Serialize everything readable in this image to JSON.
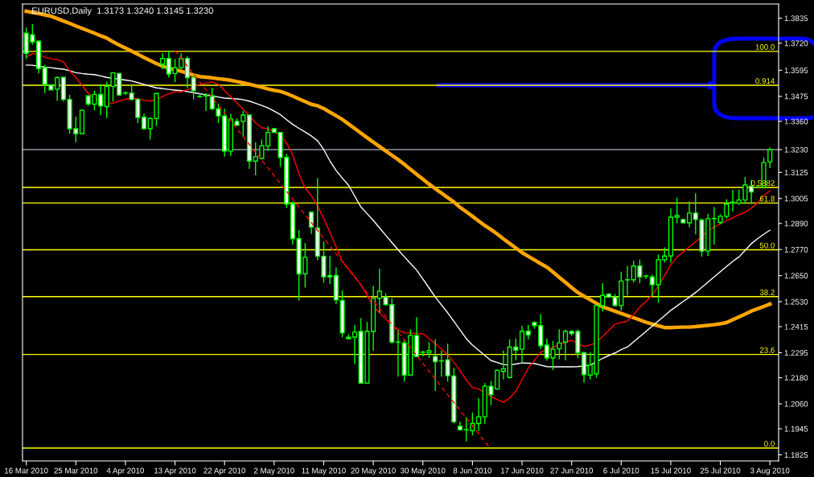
{
  "chart_data": {
    "type": "candlestick",
    "title": "EURUSD,Daily  1.3173 1.3240 1.3145 1.3230",
    "categories": [
      "16 Mar 2010",
      null,
      null,
      null,
      null,
      null,
      null,
      null,
      "25 Mar 2010",
      null,
      null,
      null,
      null,
      null,
      null,
      null,
      "4 Apr 2010",
      null,
      null,
      null,
      null,
      null,
      null,
      null,
      "13 Apr 2010",
      null,
      null,
      null,
      null,
      null,
      null,
      null,
      "22 Apr 2010",
      null,
      null,
      null,
      null,
      null,
      null,
      null,
      "2 May 2010",
      null,
      null,
      null,
      null,
      null,
      null,
      null,
      "11 May 2010",
      null,
      null,
      null,
      null,
      null,
      null,
      null,
      "20 May 2010",
      null,
      null,
      null,
      null,
      null,
      null,
      null,
      "30 May 2010",
      null,
      null,
      null,
      null,
      null,
      null,
      null,
      "8 Jun 2010",
      null,
      null,
      null,
      null,
      null,
      null,
      null,
      "17 Jun 2010",
      null,
      null,
      null,
      null,
      null,
      null,
      null,
      "27 Jun 2010",
      null,
      null,
      null,
      null,
      null,
      null,
      null,
      "6 Jul 2010",
      null,
      null,
      null,
      null,
      null,
      null,
      null,
      "15 Jul 2010",
      null,
      null,
      null,
      null,
      null,
      null,
      null,
      "25 Jul 2010",
      null,
      null,
      null,
      null,
      null,
      null,
      null,
      "3 Aug 2010"
    ],
    "ohlc": [
      [
        1.3766,
        1.3792,
        1.3647,
        1.3673
      ],
      [
        1.3759,
        1.3808,
        1.3713,
        1.3726
      ],
      [
        1.3729,
        1.3733,
        1.358,
        1.3603
      ],
      [
        1.3607,
        1.362,
        1.349,
        1.353
      ],
      [
        1.3528,
        1.353,
        1.3504,
        1.3505
      ],
      [
        1.3508,
        1.3567,
        1.3455,
        1.3561
      ],
      [
        1.3563,
        1.3567,
        1.3451,
        1.3461
      ],
      [
        1.3461,
        1.3481,
        1.3303,
        1.3326
      ],
      [
        1.3326,
        1.3382,
        1.3263,
        1.3303
      ],
      [
        1.3303,
        1.3415,
        1.33,
        1.3411
      ],
      [
        1.3477,
        1.348,
        1.3432,
        1.344
      ],
      [
        1.3439,
        1.3501,
        1.3411,
        1.3484
      ],
      [
        1.3484,
        1.3532,
        1.3389,
        1.3431
      ],
      [
        1.3428,
        1.3543,
        1.3375,
        1.3521
      ],
      [
        1.3521,
        1.3587,
        1.3451,
        1.3583
      ],
      [
        1.358,
        1.3583,
        1.3477,
        1.3481
      ],
      [
        1.349,
        1.3498,
        1.3481,
        1.3491
      ],
      [
        1.349,
        1.3532,
        1.3455,
        1.3461
      ],
      [
        1.3461,
        1.3468,
        1.3352,
        1.3378
      ],
      [
        1.3379,
        1.3395,
        1.3322,
        1.3326
      ],
      [
        1.3326,
        1.3379,
        1.3276,
        1.3373
      ],
      [
        1.3373,
        1.3491,
        1.3338,
        1.3488
      ],
      [
        1.3623,
        1.3673,
        1.36,
        1.3649
      ],
      [
        1.3649,
        1.3686,
        1.3561,
        1.3578
      ],
      [
        1.358,
        1.3647,
        1.3541,
        1.3607
      ],
      [
        1.3607,
        1.3673,
        1.36,
        1.3649
      ],
      [
        1.3649,
        1.366,
        1.3514,
        1.3561
      ],
      [
        1.3561,
        1.358,
        1.3461,
        1.3501
      ],
      [
        1.3475,
        1.3491,
        1.3468,
        1.3474
      ],
      [
        1.3478,
        1.3491,
        1.3408,
        1.3477
      ],
      [
        1.3477,
        1.3514,
        1.3412,
        1.3418
      ],
      [
        1.3418,
        1.3442,
        1.3352,
        1.3385
      ],
      [
        1.3385,
        1.3418,
        1.3197,
        1.3223
      ],
      [
        1.3223,
        1.3395,
        1.3201,
        1.3371
      ],
      [
        1.336,
        1.3375,
        1.334,
        1.3342
      ],
      [
        1.336,
        1.3408,
        1.3287,
        1.3389
      ],
      [
        1.3389,
        1.3389,
        1.3141,
        1.3177
      ],
      [
        1.3177,
        1.3263,
        1.3111,
        1.3197
      ],
      [
        1.319,
        1.3276,
        1.3184,
        1.3247
      ],
      [
        1.3247,
        1.3338,
        1.3223,
        1.3309
      ],
      [
        1.3326,
        1.3329,
        1.3309,
        1.3309
      ],
      [
        1.3309,
        1.3309,
        1.3151,
        1.3194
      ],
      [
        1.3194,
        1.321,
        1.2961,
        1.2979
      ],
      [
        1.2979,
        1.2992,
        1.2793,
        1.282
      ],
      [
        1.282,
        1.286,
        1.2535,
        1.2658
      ],
      [
        1.2658,
        1.28,
        1.2595,
        1.2734
      ],
      [
        1.2942,
        1.2942,
        1.2842,
        1.2873
      ],
      [
        1.2869,
        1.3098,
        1.2721,
        1.2739
      ],
      [
        1.2739,
        1.2807,
        1.2617,
        1.2644
      ],
      [
        1.2651,
        1.2741,
        1.2612,
        1.2644
      ],
      [
        1.2651,
        1.2688,
        1.2518,
        1.2538
      ],
      [
        1.2535,
        1.2582,
        1.2366,
        1.2386
      ],
      [
        1.2366,
        1.2379,
        1.2357,
        1.236
      ],
      [
        1.2367,
        1.2423,
        1.2242,
        1.239
      ],
      [
        1.2393,
        1.2454,
        1.2152,
        1.2155
      ],
      [
        1.2155,
        1.2436,
        1.2152,
        1.2393
      ],
      [
        1.2393,
        1.2602,
        1.2304,
        1.2546
      ],
      [
        1.2546,
        1.2681,
        1.2479,
        1.2578
      ],
      [
        1.2551,
        1.2569,
        1.2512,
        1.2516
      ],
      [
        1.2516,
        1.2545,
        1.2337,
        1.2344
      ],
      [
        1.2344,
        1.2397,
        1.2185,
        1.2343
      ],
      [
        1.234,
        1.2353,
        1.2162,
        1.2192
      ],
      [
        1.2192,
        1.2403,
        1.2189,
        1.2374
      ],
      [
        1.2374,
        1.2459,
        1.2274,
        1.2278
      ],
      [
        1.2297,
        1.2304,
        1.2278,
        1.2298
      ],
      [
        1.2295,
        1.2344,
        1.2271,
        1.2304
      ],
      [
        1.2278,
        1.2357,
        1.2119,
        1.2254
      ],
      [
        1.2258,
        1.2304,
        1.2185,
        1.2257
      ],
      [
        1.2262,
        1.2337,
        1.2162,
        1.2189
      ],
      [
        1.2188,
        1.2225,
        1.1969,
        1.1977
      ],
      [
        1.1956,
        1.1977,
        1.1937,
        1.194
      ],
      [
        1.1941,
        1.1999,
        1.1887,
        1.194
      ],
      [
        1.1936,
        1.202,
        1.1914,
        1.1969
      ],
      [
        1.1969,
        1.2086,
        1.1934,
        1.2
      ],
      [
        1.2,
        1.2155,
        1.1967,
        1.2141
      ],
      [
        1.2141,
        1.2165,
        1.2053,
        1.2102
      ],
      [
        1.2128,
        1.2218,
        1.2125,
        1.2214
      ],
      [
        1.2209,
        1.2304,
        1.2172,
        1.2221
      ],
      [
        1.2181,
        1.2357,
        1.2176,
        1.2321
      ],
      [
        1.2321,
        1.2361,
        1.226,
        1.2307
      ],
      [
        1.2311,
        1.2419,
        1.2247,
        1.2394
      ],
      [
        1.2394,
        1.2423,
        1.2357,
        1.2377
      ],
      [
        1.2434,
        1.244,
        1.2406,
        1.242
      ],
      [
        1.242,
        1.2473,
        1.2313,
        1.2327
      ],
      [
        1.233,
        1.2361,
        1.2258,
        1.2271
      ],
      [
        1.2271,
        1.235,
        1.2215,
        1.2311
      ],
      [
        1.2313,
        1.2403,
        1.2264,
        1.234
      ],
      [
        1.2344,
        1.2401,
        1.226,
        1.2393
      ],
      [
        1.2393,
        1.2399,
        1.2373,
        1.2383
      ],
      [
        1.2393,
        1.2403,
        1.2271,
        1.2295
      ],
      [
        1.2295,
        1.23,
        1.2158,
        1.2194
      ],
      [
        1.2192,
        1.2297,
        1.2172,
        1.2238
      ],
      [
        1.2198,
        1.2516,
        1.218,
        1.2512
      ],
      [
        1.2512,
        1.2615,
        1.2485,
        1.2559
      ],
      [
        1.2565,
        1.2569,
        1.2549,
        1.2551
      ],
      [
        1.2551,
        1.2565,
        1.2509,
        1.2512
      ],
      [
        1.2512,
        1.2668,
        1.2489,
        1.2625
      ],
      [
        1.263,
        1.2694,
        1.2559,
        1.2631
      ],
      [
        1.2631,
        1.2718,
        1.2617,
        1.2694
      ],
      [
        1.2694,
        1.2723,
        1.2615,
        1.2644
      ],
      [
        1.2648,
        1.2654,
        1.2635,
        1.2647
      ],
      [
        1.2644,
        1.2654,
        1.2555,
        1.2608
      ],
      [
        1.2608,
        1.2747,
        1.2525,
        1.2723
      ],
      [
        1.2723,
        1.278,
        1.271,
        1.274
      ],
      [
        1.274,
        1.2959,
        1.271,
        1.2919
      ],
      [
        1.2919,
        1.3009,
        1.289,
        1.2926
      ],
      [
        1.2908,
        1.2912,
        1.289,
        1.2893
      ],
      [
        1.2893,
        1.2992,
        1.2873,
        1.2938
      ],
      [
        1.2938,
        1.3029,
        1.284,
        1.2908
      ],
      [
        1.2906,
        1.2912,
        1.2737,
        1.2763
      ],
      [
        1.2763,
        1.2935,
        1.274,
        1.2912
      ],
      [
        1.2912,
        1.2965,
        1.2793,
        1.2913
      ],
      [
        1.2895,
        1.2932,
        1.2886,
        1.2923
      ],
      [
        1.2923,
        1.3001,
        1.2912,
        1.2979
      ],
      [
        1.2985,
        1.3045,
        1.2946,
        1.2988
      ],
      [
        1.2983,
        1.3045,
        1.2975,
        1.2998
      ],
      [
        1.2998,
        1.3104,
        1.2979,
        1.3067
      ],
      [
        1.3062,
        1.3091,
        1.2979,
        1.3035
      ],
      [
        1.3058,
        1.3065,
        1.3055,
        1.3058
      ],
      [
        1.3058,
        1.3194,
        1.3051,
        1.317
      ],
      [
        1.3173,
        1.324,
        1.3145,
        1.323
      ]
    ],
    "series": [
      {
        "type": "line",
        "color": "#ffa500",
        "values": [
          1.3867,
          1.3861,
          1.3856,
          1.385,
          1.3844,
          1.3833,
          1.3822,
          1.3811,
          1.3799,
          1.3788,
          1.3777,
          1.3766,
          1.3754,
          1.3743,
          1.3726,
          1.3711,
          1.3697,
          1.3683,
          1.3669,
          1.3654,
          1.364,
          1.3626,
          1.3614,
          1.3605,
          1.3598,
          1.359,
          1.3582,
          1.3573,
          1.3566,
          1.3563,
          1.356,
          1.3556,
          1.3553,
          1.3549,
          1.3543,
          1.3537,
          1.3531,
          1.3524,
          1.3517,
          1.3509,
          1.3503,
          1.3498,
          1.3488,
          1.3476,
          1.3463,
          1.3451,
          1.3438,
          1.3432,
          1.3419,
          1.3402,
          1.3386,
          1.3369,
          1.3348,
          1.3327,
          1.3306,
          1.3285,
          1.3264,
          1.3244,
          1.3224,
          1.3204,
          1.3184,
          1.3162,
          1.3139,
          1.3116,
          1.3094,
          1.3071,
          1.305,
          1.303,
          1.3009,
          1.2989,
          1.2964,
          1.2944,
          1.2923,
          1.2901,
          1.288,
          1.2862,
          1.2841,
          1.2819,
          1.2798,
          1.2777,
          1.2756,
          1.2739,
          1.2722,
          1.2705,
          1.2689,
          1.2666,
          1.2642,
          1.2619,
          1.2595,
          1.2572,
          1.2555,
          1.2539,
          1.2522,
          1.2506,
          1.2496,
          1.2486,
          1.2476,
          1.2466,
          1.2456,
          1.2446,
          1.2435,
          1.2427,
          1.2419,
          1.2411,
          1.2411,
          1.2412,
          1.2413,
          1.2413,
          1.2415,
          1.2418,
          1.2421,
          1.2424,
          1.2428,
          1.2434,
          1.2447,
          1.246,
          1.2473,
          1.2487,
          1.2497,
          1.2508,
          1.2519
        ]
      },
      {
        "type": "line",
        "color": "#ffffff",
        "values": [
          1.3619,
          1.3618,
          1.3614,
          1.361,
          1.3607,
          1.3603,
          1.36,
          1.3593,
          1.3584,
          1.358,
          1.3577,
          1.3575,
          1.3569,
          1.3562,
          1.3558,
          1.3554,
          1.355,
          1.3546,
          1.3538,
          1.353,
          1.3522,
          1.3514,
          1.3511,
          1.3507,
          1.3504,
          1.3501,
          1.3497,
          1.3492,
          1.3487,
          1.3482,
          1.3477,
          1.3472,
          1.3467,
          1.3465,
          1.3463,
          1.346,
          1.3453,
          1.3443,
          1.3433,
          1.3422,
          1.3407,
          1.3391,
          1.3368,
          1.3346,
          1.3328,
          1.3311,
          1.3293,
          1.3271,
          1.323,
          1.3178,
          1.3134,
          1.3099,
          1.3066,
          1.3016,
          1.2966,
          1.2935,
          1.2904,
          1.287,
          1.2836,
          1.2802,
          1.2769,
          1.2737,
          1.2706,
          1.2675,
          1.2634,
          1.2593,
          1.2552,
          1.2515,
          1.2479,
          1.244,
          1.24,
          1.236,
          1.233,
          1.2306,
          1.2282,
          1.2259,
          1.225,
          1.2241,
          1.2238,
          1.2243,
          1.2248,
          1.2247,
          1.2245,
          1.2238,
          1.2231,
          1.223,
          1.223,
          1.223,
          1.223,
          1.2231,
          1.2234,
          1.2238,
          1.2253,
          1.2269,
          1.2282,
          1.2294,
          1.2309,
          1.2321,
          1.2345,
          1.2369,
          1.2393,
          1.2417,
          1.2441,
          1.2465,
          1.249,
          1.251,
          1.2531,
          1.2551,
          1.2572,
          1.2596,
          1.262,
          1.2644,
          1.2668,
          1.2692,
          1.2715,
          1.2736,
          1.2766,
          1.2797,
          1.282,
          1.284,
          1.2859
        ]
      },
      {
        "type": "line",
        "color": "#ff0000",
        "values": [
          1.3655,
          1.3673,
          1.3666,
          1.3655,
          1.3648,
          1.3644,
          1.3634,
          1.3593,
          1.3562,
          1.3526,
          1.3489,
          1.3466,
          1.3452,
          1.3445,
          1.3443,
          1.3454,
          1.3462,
          1.3466,
          1.3463,
          1.3458,
          1.3453,
          1.3461,
          1.3475,
          1.3487,
          1.3497,
          1.3495,
          1.3506,
          1.3518,
          1.353,
          1.3536,
          1.3541,
          1.353,
          1.3501,
          1.3473,
          1.3445,
          1.3416,
          1.3385,
          1.3353,
          1.3331,
          1.3325,
          1.3313,
          1.3296,
          1.326,
          1.3205,
          1.312,
          1.3053,
          1.3018,
          1.297,
          1.2913,
          1.285,
          1.2782,
          1.2715,
          1.268,
          1.2646,
          1.2608,
          1.2559,
          1.2508,
          1.2479,
          1.245,
          1.2423,
          1.24,
          1.2387,
          1.2385,
          1.2383,
          1.2382,
          1.236,
          1.2337,
          1.2312,
          1.2286,
          1.2251,
          1.2212,
          1.217,
          1.2135,
          1.2128,
          1.2111,
          1.2094,
          1.2079,
          1.2067,
          1.2086,
          1.2117,
          1.2172,
          1.2223,
          1.226,
          1.2297,
          1.2308,
          1.232,
          1.2332,
          1.2344,
          1.2352,
          1.2338,
          1.2324,
          1.233,
          1.2343,
          1.237,
          1.2398,
          1.2426,
          1.2434,
          1.244,
          1.247,
          1.2505,
          1.2531,
          1.2561,
          1.2603,
          1.265,
          1.2701,
          1.2735,
          1.2759,
          1.2782,
          1.2806,
          1.283,
          1.2856,
          1.2873,
          1.2889,
          1.2903,
          1.2916,
          1.293,
          1.2942,
          1.2961,
          1.2984,
          1.3019,
          1.304
        ]
      },
      {
        "type": "line",
        "color": "#ff0000",
        "line_style": "dashed",
        "values": [
          null,
          null,
          null,
          null,
          null,
          null,
          null,
          null,
          null,
          null,
          null,
          null,
          null,
          null,
          null,
          null,
          null,
          null,
          null,
          null,
          null,
          null,
          null,
          null,
          1.3686,
          1.365,
          1.3614,
          1.3578,
          1.3542,
          1.3506,
          1.347,
          1.3434,
          1.3398,
          1.3362,
          1.3326,
          1.329,
          1.3254,
          1.3218,
          1.3182,
          1.3146,
          1.311,
          1.3074,
          1.3038,
          1.3002,
          1.2966,
          1.293,
          1.2894,
          1.2858,
          1.2822,
          1.2786,
          1.275,
          1.2714,
          1.2678,
          1.2642,
          1.2606,
          1.257,
          1.2534,
          1.2498,
          1.2462,
          1.2426,
          1.239,
          1.2354,
          1.2318,
          1.2282,
          1.2246,
          1.221,
          1.2174,
          1.2138,
          1.2102,
          1.2066,
          1.203,
          1.1994,
          1.1958,
          1.1922,
          1.1886,
          1.185,
          null,
          null,
          null,
          null,
          null,
          null,
          null,
          null,
          null,
          null,
          null,
          null,
          null,
          null,
          null,
          null,
          null,
          null,
          null,
          null,
          null,
          null,
          null,
          null,
          null,
          null,
          null,
          null,
          null,
          null,
          null,
          null,
          null,
          null,
          null,
          null,
          null,
          null,
          null,
          null,
          null,
          null,
          null,
          null,
          null
        ]
      }
    ],
    "ylim": [
      1.1797,
      1.39
    ],
    "yticks": [
      {
        "value": 1.1825,
        "label": "1.1825"
      },
      {
        "value": 1.1945,
        "label": "1.1945"
      },
      {
        "value": 1.206,
        "label": "1.2060"
      },
      {
        "value": 1.218,
        "label": "1.2180"
      },
      {
        "value": 1.2295,
        "label": "1.2295"
      },
      {
        "value": 1.2415,
        "label": "1.2415"
      },
      {
        "value": 1.253,
        "label": "1.2530"
      },
      {
        "value": 1.265,
        "label": "1.2650"
      },
      {
        "value": 1.277,
        "label": "1.2770"
      },
      {
        "value": 1.289,
        "label": "1.2890"
      },
      {
        "value": 1.3005,
        "label": "1.3005"
      },
      {
        "value": 1.3125,
        "label": "1.3125"
      },
      {
        "value": 1.323,
        "label": "1.3230"
      },
      {
        "value": 1.336,
        "label": "1.3360"
      },
      {
        "value": 1.3475,
        "label": "1.3475"
      },
      {
        "value": 1.3595,
        "label": "1.3595"
      },
      {
        "value": 1.372,
        "label": "1.3720"
      },
      {
        "value": 1.3835,
        "label": "1.3835"
      }
    ],
    "ref_lines": [
      {
        "axis": "y",
        "value": 1.323,
        "label": null,
        "color": "#8c96a0"
      },
      {
        "axis": "y",
        "value": 1.3682,
        "label": null,
        "color": "#ffff00"
      },
      {
        "axis": "y",
        "value": 1.3526,
        "label": null,
        "color": "#ffff00"
      },
      {
        "axis": "y",
        "value": 1.3056,
        "label": null,
        "color": "#ffff00"
      },
      {
        "axis": "y",
        "value": 1.2984,
        "label": null,
        "color": "#ffff00"
      },
      {
        "axis": "y",
        "value": 1.2769,
        "label": null,
        "color": "#ffff00"
      },
      {
        "axis": "y",
        "value": 1.2553,
        "label": null,
        "color": "#ffff00"
      },
      {
        "axis": "y",
        "value": 1.2287,
        "label": null,
        "color": "#ffff00"
      },
      {
        "axis": "y",
        "value": 1.1856,
        "label": null,
        "color": "#ffff00"
      }
    ],
    "annotations": [
      {
        "text": "100.0",
        "y": 1.3682
      },
      {
        "text": "0.914",
        "y": 1.3526
      },
      {
        "text": "0.5882",
        "y": 1.3056
      },
      {
        "text": "61.8",
        "y": 1.2984
      },
      {
        "text": "50.0",
        "y": 1.2769
      },
      {
        "text": "38.2",
        "y": 1.2553
      },
      {
        "text": "23.6",
        "y": 1.2287
      },
      {
        "text": "0.0",
        "y": 1.1856
      }
    ],
    "grid": false,
    "legend": false
  }
}
